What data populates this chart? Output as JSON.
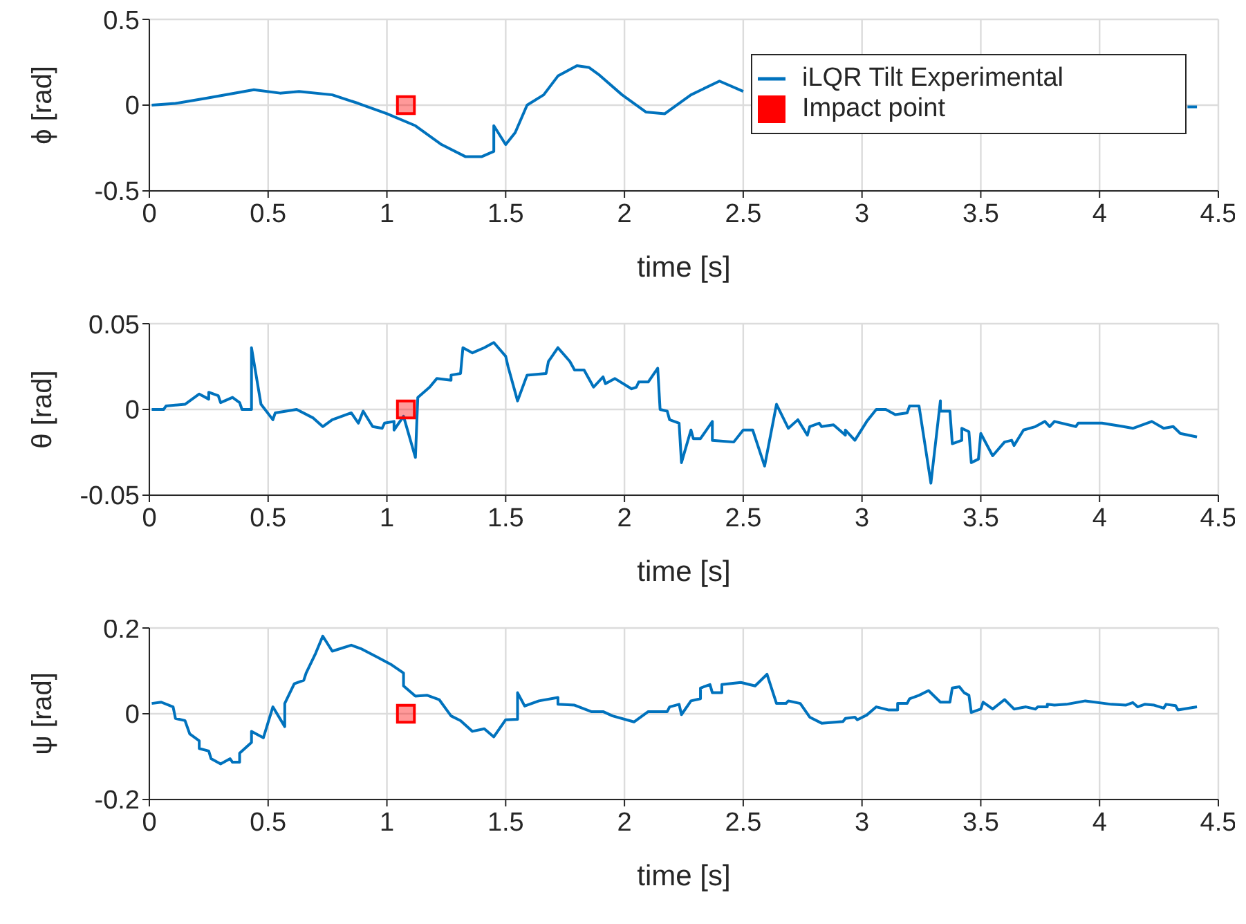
{
  "chart_data": [
    {
      "type": "line",
      "xlabel": "time [s]",
      "ylabel": "ϕ [rad]",
      "xlim": [
        0,
        4.5
      ],
      "xticks": [
        0,
        0.5,
        1,
        1.5,
        2,
        2.5,
        3,
        3.5,
        4,
        4.5
      ],
      "ylim": [
        -0.5,
        0.5
      ],
      "yticks": [
        -0.5,
        0,
        0.5
      ],
      "grid": true,
      "legend": "top right",
      "series": [
        {
          "name": "iLQR Tilt Experimental",
          "color": "#0072bd",
          "x": [
            0.01,
            0.11,
            0.24,
            0.44,
            0.55,
            0.63,
            0.77,
            0.88,
            1.0,
            1.12,
            1.23,
            1.33,
            1.4,
            1.45,
            1.45,
            1.5,
            1.54,
            1.59,
            1.66,
            1.72,
            1.8,
            1.85,
            1.89,
            1.99,
            2.09,
            2.17,
            2.2,
            2.28,
            2.4,
            2.5,
            2.52,
            4.37,
            4.41
          ],
          "values": [
            0,
            0.01,
            0.04,
            0.09,
            0.07,
            0.08,
            0.06,
            0.01,
            -0.05,
            -0.12,
            -0.23,
            -0.3,
            -0.3,
            -0.27,
            -0.12,
            -0.23,
            -0.16,
            0,
            0.06,
            0.17,
            0.23,
            0.22,
            0.18,
            0.06,
            -0.04,
            -0.05,
            -0.02,
            0.06,
            0.14,
            0.08,
            null,
            -0.01,
            -0.01
          ]
        },
        {
          "name": "Impact point",
          "type": "scatter",
          "marker": "square",
          "color": "#ff0000",
          "x": [
            1.08
          ],
          "values": [
            0
          ]
        }
      ]
    },
    {
      "type": "line",
      "xlabel": "time [s]",
      "ylabel": "θ [rad]",
      "xlim": [
        0,
        4.5
      ],
      "xticks": [
        0,
        0.5,
        1,
        1.5,
        2,
        2.5,
        3,
        3.5,
        4,
        4.5
      ],
      "ylim": [
        -0.05,
        0.05
      ],
      "yticks": [
        -0.05,
        0,
        0.05
      ],
      "grid": true,
      "series": [
        {
          "color": "#0072bd",
          "x": [
            0.01,
            0.06,
            0.07,
            0.15,
            0.21,
            0.25,
            0.25,
            0.29,
            0.3,
            0.35,
            0.38,
            0.39,
            0.43,
            0.43,
            0.47,
            0.52,
            0.53,
            0.62,
            0.69,
            0.73,
            0.77,
            0.85,
            0.88,
            0.9,
            0.94,
            0.98,
            0.99,
            1.03,
            1.03,
            1.07,
            1.12,
            1.13,
            1.18,
            1.21,
            1.27,
            1.27,
            1.31,
            1.32,
            1.36,
            1.41,
            1.45,
            1.5,
            1.51,
            1.55,
            1.59,
            1.67,
            1.68,
            1.72,
            1.77,
            1.79,
            1.83,
            1.87,
            1.91,
            1.92,
            1.96,
            2.03,
            2.05,
            2.06,
            2.1,
            2.14,
            2.15,
            2.18,
            2.19,
            2.23,
            2.24,
            2.28,
            2.29,
            2.32,
            2.37,
            2.37,
            2.46,
            2.5,
            2.54,
            2.59,
            2.64,
            2.69,
            2.73,
            2.77,
            2.78,
            2.82,
            2.83,
            2.88,
            2.93,
            2.93,
            2.97,
            3.02,
            3.06,
            3.1,
            3.14,
            3.19,
            3.2,
            3.24,
            3.29,
            3.33,
            3.33,
            3.37,
            3.38,
            3.42,
            3.42,
            3.45,
            3.46,
            3.49,
            3.5,
            3.55,
            3.6,
            3.63,
            3.64,
            3.68,
            3.73,
            3.77,
            3.79,
            3.81,
            3.9,
            3.91,
            4.01,
            4.1,
            4.14,
            4.22,
            4.27,
            4.31,
            4.34,
            4.41
          ],
          "values": [
            0,
            0,
            0.002,
            0.003,
            0.009,
            0.006,
            0.01,
            0.008,
            0.004,
            0.007,
            0.004,
            0,
            0,
            0.036,
            0.003,
            -0.006,
            -0.002,
            0,
            -0.005,
            -0.01,
            -0.006,
            -0.002,
            -0.008,
            -0.001,
            -0.01,
            -0.011,
            -0.008,
            -0.007,
            -0.012,
            -0.004,
            -0.028,
            0.007,
            0.013,
            0.018,
            0.017,
            0.02,
            0.021,
            0.036,
            0.033,
            0.036,
            0.039,
            0.031,
            0.025,
            0.005,
            0.02,
            0.021,
            0.028,
            0.036,
            0.028,
            0.023,
            0.023,
            0.013,
            0.019,
            0.015,
            0.018,
            0.012,
            0.013,
            0.016,
            0.016,
            0.024,
            0,
            -0.001,
            -0.006,
            -0.008,
            -0.031,
            -0.012,
            -0.017,
            -0.017,
            -0.007,
            -0.018,
            -0.019,
            -0.012,
            -0.012,
            -0.033,
            0.003,
            -0.011,
            -0.006,
            -0.015,
            -0.01,
            -0.008,
            -0.01,
            -0.009,
            -0.015,
            -0.012,
            -0.018,
            -0.007,
            0,
            0,
            -0.003,
            -0.002,
            0.002,
            0.002,
            -0.043,
            0.005,
            -0.001,
            -0.001,
            -0.02,
            -0.018,
            -0.011,
            -0.013,
            -0.031,
            -0.029,
            -0.014,
            -0.027,
            -0.019,
            -0.018,
            -0.021,
            -0.012,
            -0.01,
            -0.007,
            -0.01,
            -0.007,
            -0.01,
            -0.008,
            -0.008,
            -0.01,
            -0.011,
            -0.007,
            -0.011,
            -0.01,
            -0.014,
            -0.016
          ]
        },
        {
          "type": "scatter",
          "marker": "square",
          "color": "#ff0000",
          "x": [
            1.08
          ],
          "values": [
            0
          ]
        }
      ]
    },
    {
      "type": "line",
      "xlabel": "time [s]",
      "ylabel": "ψ [rad]",
      "xlim": [
        0,
        4.5
      ],
      "xticks": [
        0,
        0.5,
        1,
        1.5,
        2,
        2.5,
        3,
        3.5,
        4,
        4.5
      ],
      "ylim": [
        -0.2,
        0.2
      ],
      "yticks": [
        -0.2,
        0,
        0.2
      ],
      "grid": true,
      "series": [
        {
          "color": "#0072bd",
          "x": [
            0.01,
            0.05,
            0.1,
            0.11,
            0.15,
            0.17,
            0.21,
            0.21,
            0.25,
            0.26,
            0.3,
            0.34,
            0.35,
            0.38,
            0.38,
            0.43,
            0.43,
            0.48,
            0.52,
            0.57,
            0.57,
            0.61,
            0.65,
            0.66,
            0.7,
            0.73,
            0.77,
            0.85,
            0.89,
            0.96,
            1.02,
            1.07,
            1.07,
            1.12,
            1.17,
            1.22,
            1.27,
            1.31,
            1.36,
            1.41,
            1.45,
            1.5,
            1.55,
            1.55,
            1.58,
            1.64,
            1.72,
            1.72,
            1.79,
            1.86,
            1.91,
            1.95,
            2.04,
            2.1,
            2.18,
            2.19,
            2.23,
            2.24,
            2.28,
            2.32,
            2.32,
            2.36,
            2.37,
            2.41,
            2.41,
            2.49,
            2.55,
            2.6,
            2.64,
            2.68,
            2.69,
            2.74,
            2.78,
            2.83,
            2.92,
            2.93,
            2.97,
            2.98,
            3.02,
            3.06,
            3.11,
            3.15,
            3.15,
            3.19,
            3.2,
            3.24,
            3.28,
            3.33,
            3.37,
            3.38,
            3.41,
            3.43,
            3.45,
            3.46,
            3.5,
            3.51,
            3.55,
            3.6,
            3.64,
            3.69,
            3.73,
            3.74,
            3.78,
            3.78,
            3.81,
            3.86,
            3.94,
            4.05,
            4.11,
            4.14,
            4.16,
            4.19,
            4.23,
            4.27,
            4.28,
            4.32,
            4.33,
            4.41
          ],
          "values": [
            0.024,
            0.027,
            0.016,
            -0.011,
            -0.016,
            -0.047,
            -0.063,
            -0.081,
            -0.087,
            -0.105,
            -0.117,
            -0.105,
            -0.113,
            -0.113,
            -0.092,
            -0.067,
            -0.041,
            -0.056,
            0.016,
            -0.03,
            0.024,
            0.07,
            0.078,
            0.095,
            0.141,
            0.181,
            0.146,
            0.16,
            0.152,
            0.132,
            0.114,
            0.095,
            0.065,
            0.041,
            0.043,
            0.033,
            -0.005,
            -0.016,
            -0.041,
            -0.035,
            -0.054,
            -0.014,
            -0.013,
            0.049,
            0.018,
            0.03,
            0.038,
            0.022,
            0.02,
            0.005,
            0.005,
            -0.005,
            -0.019,
            0.005,
            0.005,
            0.016,
            0.022,
            -0.002,
            0.03,
            0.035,
            0.06,
            0.068,
            0.049,
            0.049,
            0.068,
            0.073,
            0.065,
            0.092,
            0.024,
            0.024,
            0.03,
            0.024,
            -0.008,
            -0.022,
            -0.018,
            -0.011,
            -0.008,
            -0.014,
            -0.003,
            0.016,
            0.009,
            0.009,
            0.024,
            0.024,
            0.035,
            0.043,
            0.054,
            0.027,
            0.027,
            0.06,
            0.063,
            0.049,
            0.043,
            0.003,
            0.011,
            0.027,
            0.011,
            0.033,
            0.011,
            0.016,
            0.011,
            0.016,
            0.016,
            0.022,
            0.02,
            0.022,
            0.03,
            0.022,
            0.02,
            0.026,
            0.016,
            0.022,
            0.02,
            0.013,
            0.022,
            0.019,
            0.009,
            0.016
          ]
        },
        {
          "type": "scatter",
          "marker": "square",
          "color": "#ff0000",
          "x": [
            1.08
          ],
          "values": [
            0
          ]
        }
      ]
    }
  ]
}
